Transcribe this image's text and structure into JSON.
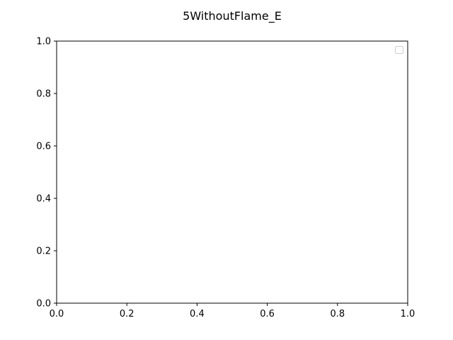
{
  "chart_data": {
    "type": "line",
    "title": "5WithoutFlame_E",
    "xlabel": "",
    "ylabel": "",
    "xlim": [
      0.0,
      1.0
    ],
    "ylim": [
      0.0,
      1.0
    ],
    "x_ticks": [
      "0.0",
      "0.2",
      "0.4",
      "0.6",
      "0.8",
      "1.0"
    ],
    "y_ticks": [
      "0.0",
      "0.2",
      "0.4",
      "0.6",
      "0.8",
      "1.0"
    ],
    "series": [],
    "grid": false,
    "legend": {
      "placement": "top-right",
      "entries": []
    },
    "colors": {
      "axes": "#000000",
      "background": "#ffffff",
      "legend_border": "#cccccc"
    }
  }
}
